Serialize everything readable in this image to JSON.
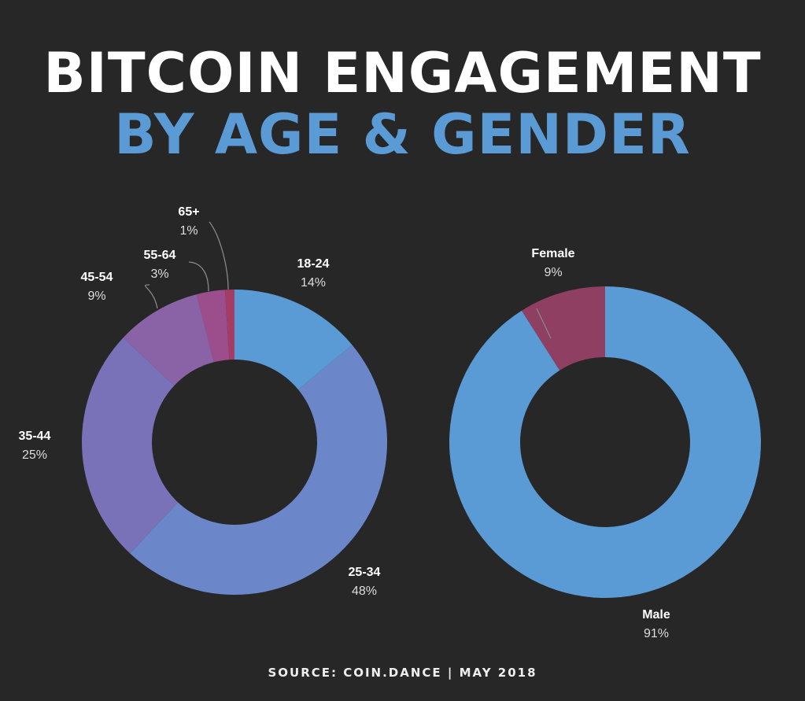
{
  "title_line1": "BITCOIN ENGAGEMENT",
  "title_line2": "BY AGE & GENDER",
  "source": "SOURCE: COIN.DANCE | MAY 2018",
  "chart_data": [
    {
      "type": "pie",
      "donut": true,
      "categories": [
        "18-24",
        "25-34",
        "35-44",
        "45-54",
        "55-64",
        "65+"
      ],
      "values": [
        14,
        48,
        25,
        9,
        3,
        1
      ],
      "labels": [
        "14%",
        "48%",
        "25%",
        "9%",
        "3%",
        "1%"
      ],
      "colors": [
        "#5b9bd5",
        "#6b87c9",
        "#7a72b8",
        "#8a62a6",
        "#9b4e8b",
        "#a33d66"
      ]
    },
    {
      "type": "pie",
      "donut": true,
      "categories": [
        "Female",
        "Male"
      ],
      "values": [
        9,
        91
      ],
      "labels": [
        "9%",
        "91%"
      ],
      "colors": [
        "#8e3f62",
        "#5b9bd5"
      ]
    }
  ]
}
